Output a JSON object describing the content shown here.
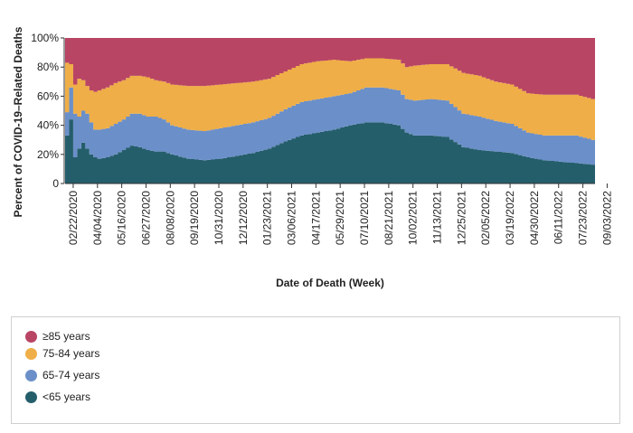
{
  "chart_data": {
    "type": "area",
    "stacked": true,
    "ylabel": "Percent of COVID-19–Related Deaths",
    "xlabel": "Date of Death (Week)",
    "ylim": [
      0,
      100
    ],
    "y_ticks": [
      "0",
      "20%",
      "40%",
      "60%",
      "80%",
      "100%"
    ],
    "x_tick_labels": [
      "02/22/2020",
      "04/04/2020",
      "05/16/2020",
      "06/27/2020",
      "08/08/2020",
      "09/19/2020",
      "10/31/2020",
      "12/12/2020",
      "01/23/2021",
      "03/06/2021",
      "04/17/2021",
      "05/29/2021",
      "07/10/2021",
      "08/21/2021",
      "10/02/2021",
      "11/13/2021",
      "12/25/2021",
      "02/05/2022",
      "03/19/2022",
      "04/30/2022",
      "06/11/2022",
      "07/23/2022",
      "09/03/2022"
    ],
    "anchor_weeks": [
      0,
      1,
      2,
      3,
      4,
      5,
      6,
      7,
      8,
      10,
      12,
      14,
      16,
      18,
      20,
      22,
      24,
      26,
      30,
      34,
      38,
      42,
      46,
      50,
      54,
      58,
      62,
      66,
      70,
      72,
      74,
      78,
      82,
      84,
      86,
      90,
      94,
      98,
      102,
      106,
      110,
      114,
      118,
      122,
      126,
      130
    ],
    "series": [
      {
        "name": "<65 years",
        "color": "#255e6b",
        "values": [
          33,
          44,
          18,
          24,
          28,
          24,
          20,
          18,
          17,
          18,
          20,
          23,
          26,
          25,
          23,
          22,
          22,
          20,
          17,
          16,
          17,
          19,
          21,
          24,
          29,
          33,
          35,
          37,
          40,
          41,
          42,
          42,
          40,
          35,
          33,
          33,
          32,
          25,
          23,
          22,
          21,
          18,
          16,
          15,
          14,
          13
        ]
      },
      {
        "name": "65-74 years",
        "color": "#6b8fc9",
        "values": [
          16,
          22,
          30,
          22,
          22,
          24,
          22,
          19,
          20,
          20,
          21,
          21,
          22,
          23,
          23,
          24,
          22,
          20,
          20,
          20,
          21,
          21,
          21,
          21,
          22,
          23,
          23,
          23,
          22,
          23,
          24,
          24,
          24,
          23,
          24,
          25,
          25,
          23,
          23,
          21,
          20,
          17,
          17,
          18,
          19,
          17
        ]
      },
      {
        "name": "75-84 years",
        "color": "#efae47",
        "values": [
          34,
          16,
          20,
          26,
          21,
          19,
          22,
          26,
          27,
          28,
          28,
          27,
          26,
          26,
          27,
          25,
          26,
          28,
          30,
          31,
          30,
          29,
          28,
          27,
          26,
          26,
          26,
          25,
          22,
          21,
          20,
          20,
          21,
          22,
          24,
          24,
          25,
          28,
          28,
          27,
          27,
          27,
          28,
          28,
          28,
          28
        ]
      },
      {
        "name": "≥85 years",
        "color": "#b94564",
        "values": [
          17,
          18,
          32,
          28,
          29,
          33,
          36,
          37,
          36,
          34,
          31,
          29,
          26,
          26,
          27,
          29,
          30,
          32,
          33,
          33,
          32,
          31,
          30,
          28,
          23,
          18,
          16,
          15,
          16,
          15,
          14,
          14,
          15,
          20,
          19,
          18,
          18,
          24,
          26,
          30,
          32,
          38,
          39,
          39,
          39,
          42
        ]
      }
    ]
  },
  "legend": {
    "items": [
      {
        "label": "≥85 years",
        "color": "#b94564"
      },
      {
        "label": "75-84 years",
        "color": "#efae47"
      },
      {
        "label": "65-74 years",
        "color": "#6b8fc9"
      },
      {
        "label": "<65 years",
        "color": "#255e6b"
      }
    ]
  }
}
